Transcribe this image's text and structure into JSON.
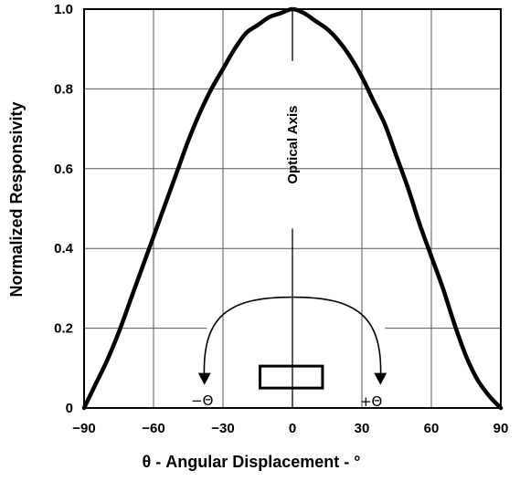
{
  "chart_data": {
    "type": "line",
    "title": "",
    "xlabel": "θ - Angular Displacement - °",
    "ylabel": "Normalized Responsivity",
    "xlim": [
      -90,
      90
    ],
    "ylim": [
      0,
      1.0
    ],
    "x_ticks": [
      -90,
      -60,
      -30,
      0,
      30,
      60,
      90
    ],
    "x_tick_labels": [
      "−90",
      "−60",
      "−30",
      "0",
      "30",
      "60",
      "90"
    ],
    "y_ticks": [
      0,
      0.2,
      0.4,
      0.6,
      0.8,
      1.0
    ],
    "y_tick_labels": [
      "0",
      "0.2",
      "0.4",
      "0.6",
      "0.8",
      "1.0"
    ],
    "grid": true,
    "series": [
      {
        "x": [
          -90,
          -85,
          -80,
          -75,
          -70,
          -65,
          -60,
          -55,
          -50,
          -45,
          -40,
          -35,
          -30,
          -25,
          -20,
          -15,
          -10,
          -5,
          0,
          5,
          10,
          15,
          20,
          25,
          30,
          35,
          40,
          45,
          50,
          55,
          60,
          65,
          70,
          75,
          80,
          85,
          90
        ],
        "y": [
          0.0,
          0.06,
          0.12,
          0.19,
          0.27,
          0.35,
          0.43,
          0.51,
          0.59,
          0.67,
          0.74,
          0.8,
          0.85,
          0.9,
          0.94,
          0.96,
          0.98,
          0.99,
          1.0,
          0.99,
          0.97,
          0.95,
          0.92,
          0.88,
          0.83,
          0.77,
          0.71,
          0.63,
          0.55,
          0.46,
          0.38,
          0.3,
          0.21,
          0.13,
          0.07,
          0.03,
          0.0
        ],
        "color": "#000000"
      }
    ],
    "annotations": {
      "optical_axis_label": "Optical Axis",
      "minus_theta_label": "−Θ",
      "plus_theta_label": "+Θ"
    }
  }
}
